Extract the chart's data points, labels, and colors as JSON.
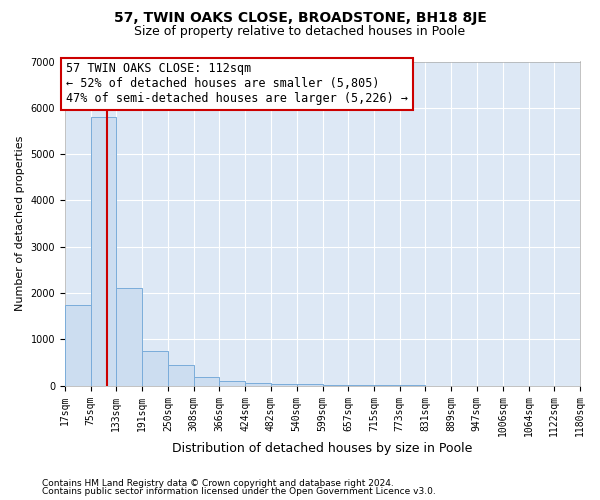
{
  "title": "57, TWIN OAKS CLOSE, BROADSTONE, BH18 8JE",
  "subtitle": "Size of property relative to detached houses in Poole",
  "xlabel": "Distribution of detached houses by size in Poole",
  "ylabel": "Number of detached properties",
  "footnote1": "Contains HM Land Registry data © Crown copyright and database right 2024.",
  "footnote2": "Contains public sector information licensed under the Open Government Licence v3.0.",
  "bin_labels": [
    "17sqm",
    "75sqm",
    "133sqm",
    "191sqm",
    "250sqm",
    "308sqm",
    "366sqm",
    "424sqm",
    "482sqm",
    "540sqm",
    "599sqm",
    "657sqm",
    "715sqm",
    "773sqm",
    "831sqm",
    "889sqm",
    "947sqm",
    "1006sqm",
    "1064sqm",
    "1122sqm",
    "1180sqm"
  ],
  "bin_edges": [
    17,
    75,
    133,
    191,
    250,
    308,
    366,
    424,
    482,
    540,
    599,
    657,
    715,
    773,
    831,
    889,
    947,
    1006,
    1064,
    1122,
    1180
  ],
  "bar_values": [
    1750,
    5800,
    2100,
    750,
    450,
    175,
    90,
    65,
    45,
    30,
    20,
    10,
    5,
    3,
    2,
    1,
    1,
    1,
    1,
    1
  ],
  "bar_color": "#ccddf0",
  "bar_edge_color": "#7aacda",
  "property_size": 112,
  "property_line_color": "#cc0000",
  "annotation_line1": "57 TWIN OAKS CLOSE: 112sqm",
  "annotation_line2": "← 52% of detached houses are smaller (5,805)",
  "annotation_line3": "47% of semi-detached houses are larger (5,226) →",
  "annotation_box_color": "#ffffff",
  "annotation_box_edge": "#cc0000",
  "ylim": [
    0,
    7000
  ],
  "yticks": [
    0,
    1000,
    2000,
    3000,
    4000,
    5000,
    6000,
    7000
  ],
  "plot_background": "#dde8f5",
  "grid_color": "#ffffff",
  "fig_background": "#ffffff",
  "title_fontsize": 10,
  "subtitle_fontsize": 9,
  "annotation_fontsize": 8.5,
  "ylabel_fontsize": 8,
  "xlabel_fontsize": 9,
  "tick_fontsize": 7,
  "footnote_fontsize": 6.5
}
